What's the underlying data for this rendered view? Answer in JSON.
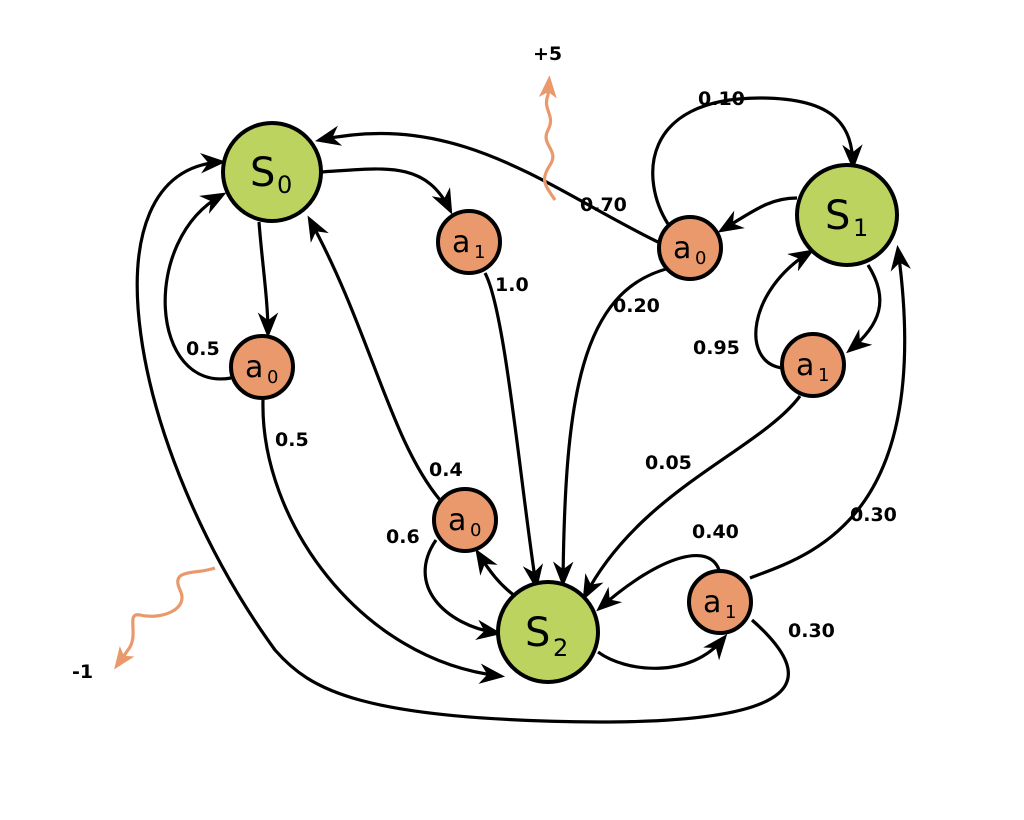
{
  "colors": {
    "state": "#bcd35f",
    "action": "#e9996b",
    "reward": "#e9996b"
  },
  "states": [
    {
      "id": "S0",
      "letter": "S",
      "sub": "0"
    },
    {
      "id": "S1",
      "letter": "S",
      "sub": "1"
    },
    {
      "id": "S2",
      "letter": "S",
      "sub": "2"
    }
  ],
  "actions": [
    {
      "id": "S0a0",
      "state": "S0",
      "letter": "a",
      "sub": "0"
    },
    {
      "id": "S0a1",
      "state": "S0",
      "letter": "a",
      "sub": "1"
    },
    {
      "id": "S1a0",
      "state": "S1",
      "letter": "a",
      "sub": "0"
    },
    {
      "id": "S1a1",
      "state": "S1",
      "letter": "a",
      "sub": "1"
    },
    {
      "id": "S2a0",
      "state": "S2",
      "letter": "a",
      "sub": "0"
    },
    {
      "id": "S2a1",
      "state": "S2",
      "letter": "a",
      "sub": "1"
    }
  ],
  "transitions": [
    {
      "from": "S0a0",
      "to": "S0",
      "p": "0.5"
    },
    {
      "from": "S0a0",
      "to": "S2",
      "p": "0.5"
    },
    {
      "from": "S0a1",
      "to": "S2",
      "p": "1.0"
    },
    {
      "from": "S1a0",
      "to": "S0",
      "p": "0.70"
    },
    {
      "from": "S1a0",
      "to": "S1",
      "p": "0.10"
    },
    {
      "from": "S1a0",
      "to": "S2",
      "p": "0.20"
    },
    {
      "from": "S1a1",
      "to": "S1",
      "p": "0.95"
    },
    {
      "from": "S1a1",
      "to": "S2",
      "p": "0.05"
    },
    {
      "from": "S2a0",
      "to": "S0",
      "p": "0.4"
    },
    {
      "from": "S2a0",
      "to": "S2",
      "p": "0.6"
    },
    {
      "from": "S2a1",
      "to": "S2",
      "p": "0.40"
    },
    {
      "from": "S2a1",
      "to": "S1",
      "p": "0.30"
    },
    {
      "from": "S2a1",
      "to": "S0",
      "p": "0.30"
    }
  ],
  "rewards": [
    {
      "on": "S1a0 -> S0",
      "value": "+5"
    },
    {
      "on": "S2a1 -> S0",
      "value": "-1"
    }
  ]
}
